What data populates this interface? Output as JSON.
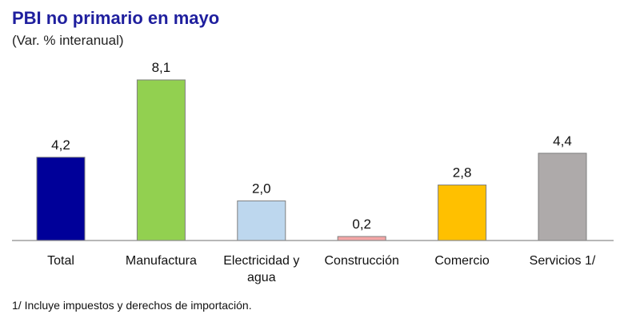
{
  "chart_data": {
    "type": "bar",
    "title": "PBI no primario en mayo",
    "subtitle": "(Var. % interanual)",
    "categories": [
      "Total",
      "Manufactura",
      "Electricidad y agua",
      "Construcción",
      "Comercio",
      "Servicios 1/"
    ],
    "category_lines": [
      [
        "Total"
      ],
      [
        "Manufactura"
      ],
      [
        "Electricidad y",
        "agua"
      ],
      [
        "Construcción"
      ],
      [
        "Comercio"
      ],
      [
        "Servicios 1/"
      ]
    ],
    "values": [
      4.2,
      8.1,
      2.0,
      0.2,
      2.8,
      4.4
    ],
    "value_labels": [
      "4,2",
      "8,1",
      "2,0",
      "0,2",
      "2,8",
      "4,4"
    ],
    "colors": [
      "#000099",
      "#92d050",
      "#bdd7ee",
      "#f4a6a6",
      "#ffc000",
      "#aeaaaa"
    ],
    "ylim": [
      0,
      8.1
    ],
    "grid": false,
    "legend": false,
    "footnote": "1/ Incluye impuestos y derechos de importación."
  }
}
